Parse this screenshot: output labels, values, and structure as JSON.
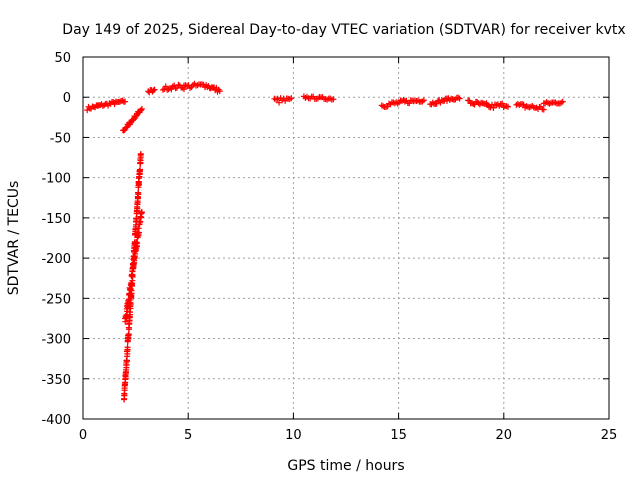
{
  "chart_data": {
    "type": "scatter",
    "title": "Day 149 of 2025, Sidereal Day-to-day VTEC variation (SDTVAR) for receiver kvtx",
    "xlabel": "GPS time / hours",
    "ylabel": "SDTVAR / TECUs",
    "xlim": [
      0,
      25
    ],
    "ylim": [
      -400,
      50
    ],
    "xticks": [
      0,
      5,
      10,
      15,
      20,
      25
    ],
    "yticks": [
      50,
      0,
      -50,
      -100,
      -150,
      -200,
      -250,
      -300,
      -350,
      -400
    ],
    "grid": true,
    "marker": "+",
    "color": "#ff0000",
    "segments": [
      {
        "x0": 0.2,
        "x1": 0.7,
        "y0": -14,
        "y1": -11,
        "spread": 4
      },
      {
        "x0": 0.7,
        "x1": 1.5,
        "y0": -11,
        "y1": -7,
        "spread": 4
      },
      {
        "x0": 1.5,
        "x1": 2.0,
        "y0": -7,
        "y1": -5,
        "spread": 3
      },
      {
        "x0": 1.9,
        "x1": 2.2,
        "y0": -42,
        "y1": -33,
        "spread": 3
      },
      {
        "x0": 2.2,
        "x1": 2.8,
        "y0": -33,
        "y1": -14,
        "spread": 4
      },
      {
        "x0": 1.95,
        "x1": 2.75,
        "y0": -375,
        "y1": -70,
        "spread": 10
      },
      {
        "x0": 2.0,
        "x1": 2.8,
        "y0": -280,
        "y1": -140,
        "spread": 10
      },
      {
        "x0": 3.1,
        "x1": 3.4,
        "y0": 7,
        "y1": 8,
        "spread": 4
      },
      {
        "x0": 3.8,
        "x1": 4.8,
        "y0": 11,
        "y1": 14,
        "spread": 5
      },
      {
        "x0": 4.8,
        "x1": 5.8,
        "y0": 13,
        "y1": 15,
        "spread": 6
      },
      {
        "x0": 5.8,
        "x1": 6.5,
        "y0": 15,
        "y1": 8,
        "spread": 5
      },
      {
        "x0": 9.1,
        "x1": 9.9,
        "y0": -4,
        "y1": -4,
        "spread": 7
      },
      {
        "x0": 10.5,
        "x1": 11.9,
        "y0": 0,
        "y1": -2,
        "spread": 3
      },
      {
        "x0": 14.2,
        "x1": 15.3,
        "y0": -10,
        "y1": -6,
        "spread": 6
      },
      {
        "x0": 15.3,
        "x1": 16.2,
        "y0": -6,
        "y1": -3,
        "spread": 5
      },
      {
        "x0": 16.5,
        "x1": 17.3,
        "y0": -8,
        "y1": -3,
        "spread": 4
      },
      {
        "x0": 17.3,
        "x1": 17.9,
        "y0": -3,
        "y1": -1,
        "spread": 3
      },
      {
        "x0": 18.3,
        "x1": 19.3,
        "y0": -6,
        "y1": -11,
        "spread": 6
      },
      {
        "x0": 19.3,
        "x1": 20.2,
        "y0": -12,
        "y1": -9,
        "spread": 6
      },
      {
        "x0": 20.6,
        "x1": 21.9,
        "y0": -10,
        "y1": -14,
        "spread": 6
      },
      {
        "x0": 21.9,
        "x1": 22.8,
        "y0": -8,
        "y1": -6,
        "spread": 4
      }
    ]
  }
}
